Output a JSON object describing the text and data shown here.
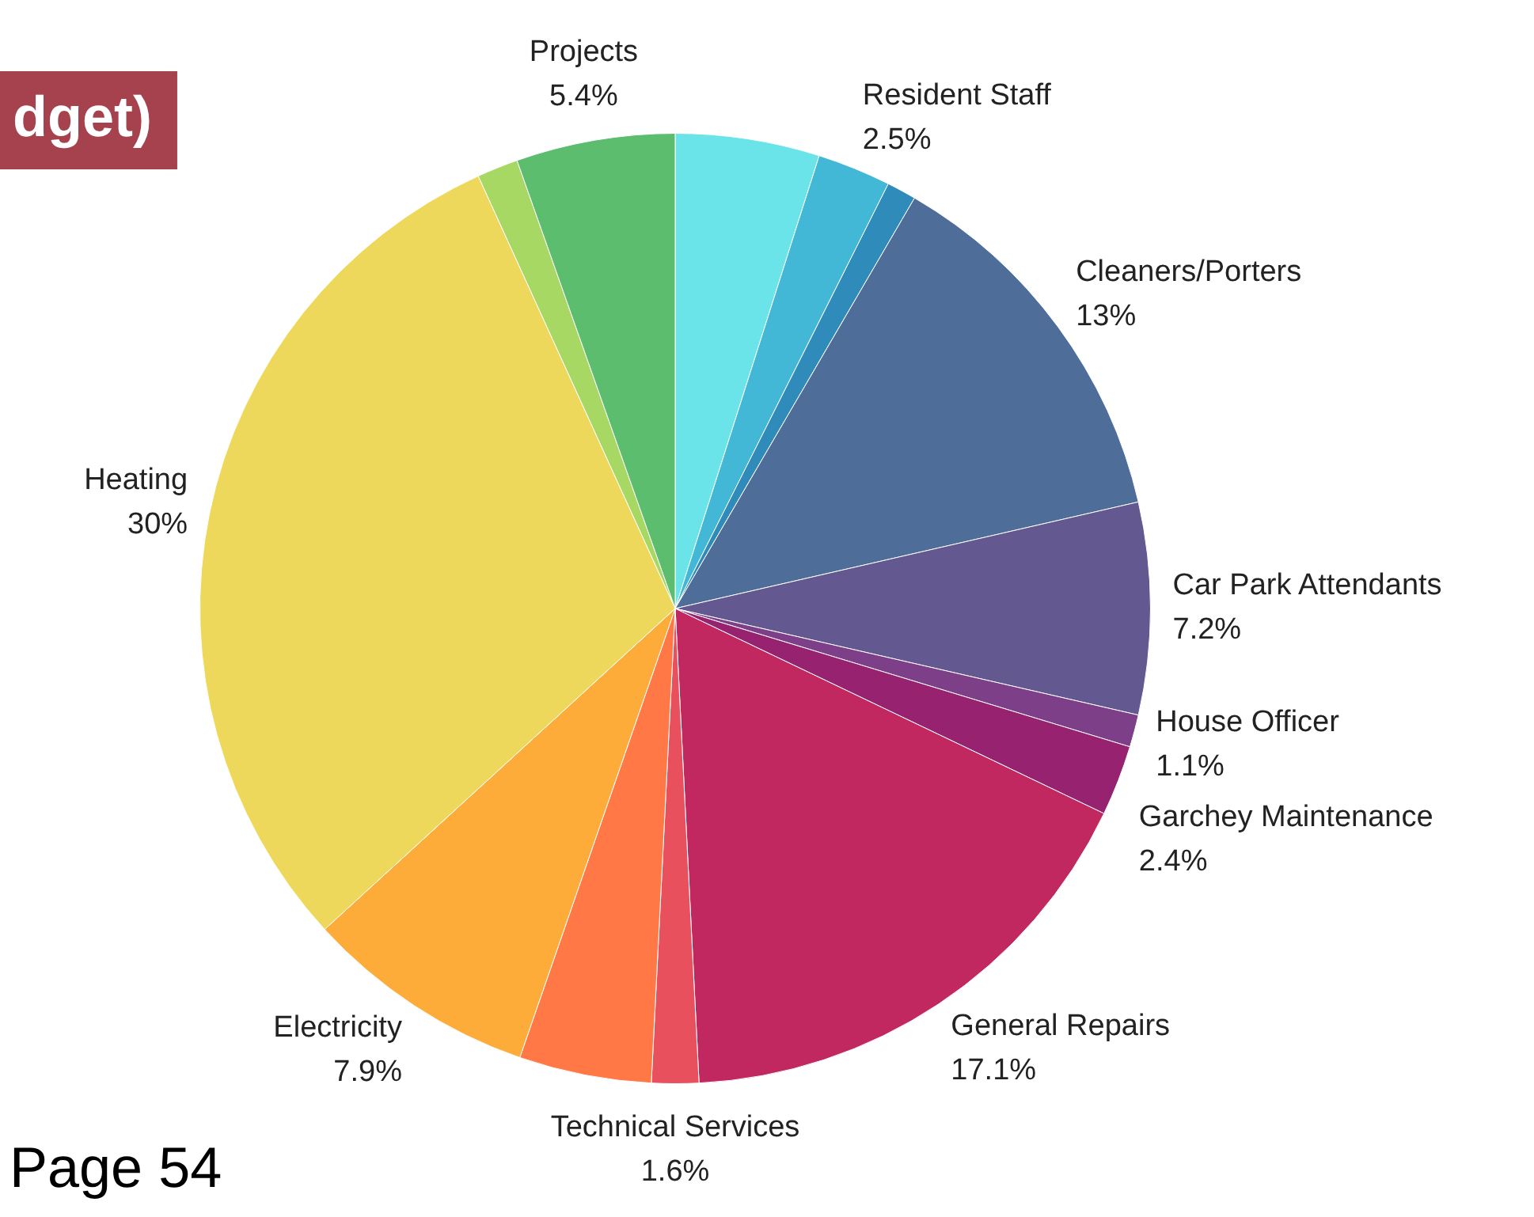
{
  "chart_data": {
    "type": "pie",
    "title": "dget)",
    "categories": [
      null,
      "Resident Staff",
      null,
      "Cleaners/Porters",
      "Car Park Attendants",
      "House Officer",
      "Garchey Maintenance",
      "General Repairs",
      "Technical Services",
      null,
      "Electricity",
      "Heating",
      null,
      "Projects"
    ],
    "values": [
      4.9,
      2.5,
      1.0,
      13,
      7.2,
      1.1,
      2.4,
      17.1,
      1.6,
      4.5,
      7.9,
      30,
      1.4,
      5.4
    ],
    "value_labels": [
      null,
      "2.5%",
      null,
      "13%",
      "7.2%",
      "1.1%",
      "2.4%",
      "17.1%",
      "1.6%",
      null,
      "7.9%",
      "30%",
      null,
      "5.4%"
    ],
    "colors": [
      "#6ae4e8",
      "#42b8d6",
      "#2e8bba",
      "#4f6d99",
      "#63588f",
      "#7c3f88",
      "#962270",
      "#c1285f",
      "#e8505e",
      "#ff7845",
      "#fdac3a",
      "#eed85c",
      "#a8d864",
      "#5dbd6f"
    ],
    "legend": false,
    "annotations": [
      "Page 54"
    ]
  }
}
